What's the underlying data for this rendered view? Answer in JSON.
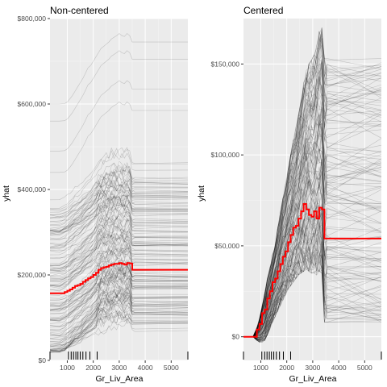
{
  "chart_data": [
    {
      "type": "line",
      "title": "Non-centered",
      "xlabel": "Gr_Liv_Area",
      "ylabel": "yhat",
      "xlim": [
        334,
        5642
      ],
      "ylim": [
        0,
        800000
      ],
      "x_ticks": [
        1000,
        2000,
        3000,
        4000,
        5000
      ],
      "x_tick_labels": [
        "1000",
        "2000",
        "3000",
        "4000",
        "5000"
      ],
      "y_ticks": [
        0,
        200000,
        400000,
        600000,
        800000
      ],
      "y_tick_labels": [
        "$0",
        "$200,000",
        "$400,000",
        "$600,000",
        "$800,000"
      ],
      "rug_x": [
        334,
        1040,
        1150,
        1240,
        1330,
        1410,
        1500,
        1600,
        1720,
        1870,
        2150,
        5642
      ],
      "x": [
        334,
        700,
        900,
        1000,
        1100,
        1200,
        1300,
        1400,
        1500,
        1600,
        1700,
        1800,
        1900,
        2000,
        2100,
        2200,
        2300,
        2400,
        2500,
        2600,
        2700,
        2800,
        2900,
        3000,
        3100,
        3200,
        3300,
        3400,
        3500,
        3600,
        5642
      ],
      "series": [
        {
          "values": [
            157000,
            157000,
            160000,
            163000,
            166000,
            170000,
            174000,
            176000,
            179000,
            184000,
            188000,
            192000,
            195000,
            200000,
            205000,
            212000,
            216000,
            218000,
            219000,
            222000,
            224000,
            226000,
            226000,
            228000,
            226000,
            224000,
            228000,
            227000,
            212000,
            212000,
            212000
          ]
        }
      ],
      "ice_summary": {
        "baseline_min": 20000,
        "baseline_max": 600000,
        "upper_envelope": [
          600000,
          600000,
          601000,
          605000,
          612000,
          620000,
          630000,
          640000,
          650000,
          660000,
          672000,
          685000,
          690000,
          700000,
          710000,
          720000,
          730000,
          735000,
          740000,
          745000,
          752000,
          756000,
          760000,
          765000,
          760000,
          758000,
          765000,
          760000,
          745000,
          745000,
          745000
        ]
      },
      "grid": true,
      "background": "#ebebeb",
      "pdp_color": "#ff0000"
    },
    {
      "type": "line",
      "title": "Centered",
      "xlabel": "Gr_Liv_Area",
      "ylabel": "yhat",
      "xlim": [
        334,
        5642
      ],
      "ylim": [
        -13000,
        175000
      ],
      "x_ticks": [
        1000,
        2000,
        3000,
        4000,
        5000
      ],
      "x_tick_labels": [
        "1000",
        "2000",
        "3000",
        "4000",
        "5000"
      ],
      "y_ticks": [
        0,
        50000,
        100000,
        150000
      ],
      "y_tick_labels": [
        "$0",
        "$50,000",
        "$100,000",
        "$150,000"
      ],
      "rug_x": [
        334,
        1040,
        1150,
        1240,
        1330,
        1410,
        1500,
        1600,
        1720,
        1870,
        2150,
        5642
      ],
      "x": [
        334,
        700,
        850,
        950,
        1050,
        1150,
        1250,
        1350,
        1450,
        1550,
        1650,
        1750,
        1850,
        1950,
        2050,
        2150,
        2250,
        2350,
        2450,
        2550,
        2650,
        2750,
        2850,
        2950,
        3050,
        3150,
        3250,
        3350,
        3450,
        3550,
        5642
      ],
      "series": [
        {
          "values": [
            0,
            0,
            4000,
            7000,
            13000,
            15000,
            21000,
            25000,
            30000,
            32000,
            36000,
            40000,
            44000,
            47000,
            52000,
            56000,
            60000,
            61000,
            65000,
            69000,
            73000,
            70000,
            67000,
            66000,
            69000,
            65000,
            71000,
            70000,
            54000,
            54000,
            54000
          ]
        }
      ],
      "ice_summary": {
        "upper_envelope": [
          0,
          0,
          5000,
          10000,
          18000,
          24000,
          32000,
          38000,
          45000,
          52000,
          60000,
          68000,
          76000,
          84000,
          92000,
          100000,
          108000,
          115000,
          122000,
          130000,
          140000,
          148000,
          150000,
          152000,
          155000,
          160000,
          168000,
          170000,
          153000,
          153000,
          153000
        ],
        "lower_envelope": [
          0,
          0,
          -2000,
          -3000,
          -3000,
          -2000,
          1000,
          4000,
          8000,
          11000,
          14000,
          17000,
          20000,
          23000,
          26000,
          28000,
          30000,
          32000,
          34000,
          35000,
          36000,
          37000,
          36000,
          35000,
          35000,
          34000,
          36000,
          35000,
          8000,
          8000,
          8000
        ]
      },
      "grid": true,
      "background": "#ebebeb",
      "pdp_color": "#ff0000"
    }
  ]
}
